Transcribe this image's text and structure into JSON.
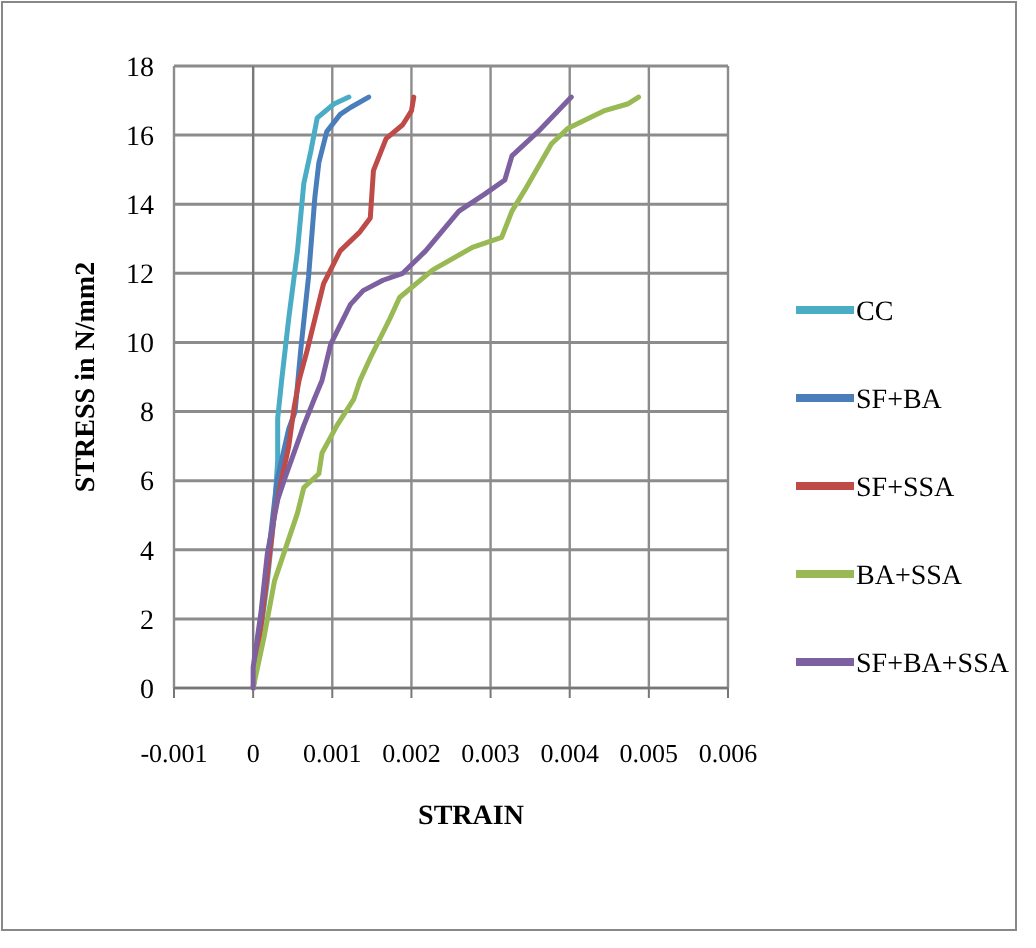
{
  "chart_data": {
    "type": "line",
    "xlabel": "STRAIN",
    "ylabel": "STRESS in N/mm2",
    "xlim": [
      -0.001,
      0.006
    ],
    "ylim": [
      0,
      18
    ],
    "xticks": [
      -0.001,
      0,
      0.001,
      0.002,
      0.003,
      0.004,
      0.005,
      0.006
    ],
    "yticks": [
      0,
      2,
      4,
      6,
      8,
      10,
      12,
      14,
      16,
      18
    ],
    "grid": true,
    "legend": "right",
    "marker": "none",
    "line_style": "solid",
    "series": [
      {
        "name": "CC",
        "color": "#4bacc6",
        "x": [
          0,
          6e-05,
          0.00018,
          0.00027,
          0.00031,
          0.00031,
          0.00036,
          0.00045,
          0.00056,
          0.00064,
          0.00073,
          0.00081,
          0.00102,
          0.00121
        ],
        "values": [
          0,
          1,
          3.1,
          5.1,
          6.6,
          7.8,
          8.9,
          10.7,
          12.65,
          14.6,
          15.55,
          16.5,
          16.9,
          17.1
        ]
      },
      {
        "name": "SF+BA",
        "color": "#4a7ebb",
        "x": [
          0,
          0.0001,
          0.0002,
          0.0003,
          0.00045,
          0.00053,
          0.0006,
          0.0007,
          0.00078,
          0.00083,
          0.00093,
          0.0011,
          0.00123,
          0.00146
        ],
        "values": [
          0,
          2,
          4,
          6,
          7.5,
          8,
          9.75,
          11.9,
          14.2,
          15.2,
          16.1,
          16.6,
          16.8,
          17.1
        ]
      },
      {
        "name": "SF+SSA",
        "color": "#be4b48",
        "x": [
          0,
          0.00014,
          0.00027,
          0.00045,
          0.00052,
          0.00058,
          0.00068,
          0.00089,
          0.0011,
          0.00135,
          0.00148,
          0.00152,
          0.00168,
          0.00189,
          0.002,
          0.00203
        ],
        "values": [
          0,
          2.55,
          5.06,
          7,
          8.15,
          8.9,
          9.75,
          11.7,
          12.65,
          13.2,
          13.6,
          14.97,
          15.9,
          16.3,
          16.7,
          17.1
        ]
      },
      {
        "name": "BA+SSA",
        "color": "#98b954",
        "x": [
          0,
          0.00014,
          0.00027,
          0.00056,
          0.00064,
          0.00083,
          0.00087,
          0.00106,
          0.00127,
          0.00135,
          0.00148,
          0.00173,
          0.00185,
          0.00227,
          0.00277,
          0.00314,
          0.00327,
          0.00343,
          0.00377,
          0.00398,
          0.00443,
          0.00473,
          0.00487
        ],
        "values": [
          0,
          1.5,
          3.1,
          5.06,
          5.8,
          6.2,
          6.8,
          7.6,
          8.35,
          8.9,
          9.55,
          10.7,
          11.3,
          12.1,
          12.75,
          13.04,
          13.8,
          14.4,
          15.75,
          16.2,
          16.7,
          16.9,
          17.1
        ]
      },
      {
        "name": "SF+BA+SSA",
        "color": "#7d60a0",
        "x": [
          0,
          0,
          0.0001,
          0.00018,
          0.00031,
          0.00039,
          0.00064,
          0.00077,
          0.00087,
          0.00098,
          0.00123,
          0.00139,
          0.00164,
          0.00189,
          0.00218,
          0.0026,
          0.00293,
          0.00318,
          0.00327,
          0.0036,
          0.00402
        ],
        "values": [
          0,
          0.6,
          2.2,
          3.9,
          5.45,
          6,
          7.6,
          8.35,
          8.9,
          9.95,
          11.1,
          11.5,
          11.8,
          12,
          12.65,
          13.8,
          14.3,
          14.7,
          15.4,
          16.1,
          17.1
        ]
      }
    ]
  }
}
